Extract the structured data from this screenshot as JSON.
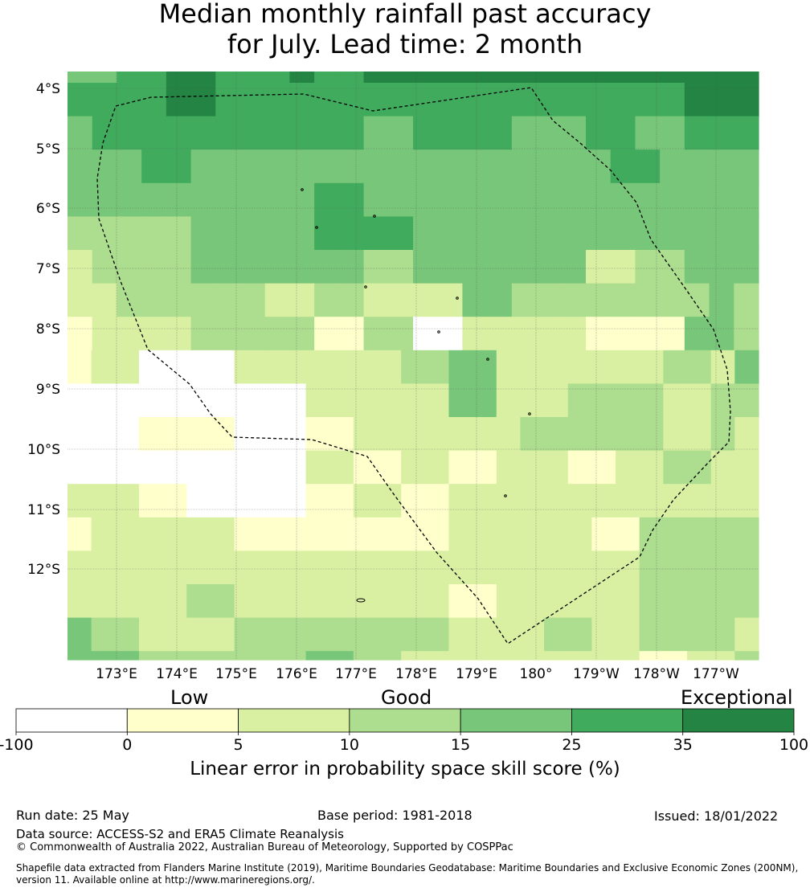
{
  "title_line1": "Median monthly rainfall past accuracy",
  "title_line2": "for July. Lead time: 2 month",
  "map": {
    "lon_labels": [
      "173°E",
      "174°E",
      "175°E",
      "176°E",
      "177°E",
      "178°E",
      "179°E",
      "180°",
      "179°W",
      "178°W",
      "177°W"
    ],
    "lat_labels": [
      "4°S",
      "5°S",
      "6°S",
      "7°S",
      "8°S",
      "9°S",
      "10°S",
      "11°S",
      "12°S"
    ],
    "class_colors": [
      "#ffffff",
      "#ffffcc",
      "#d9f0a3",
      "#addd8e",
      "#78c679",
      "#41ab5d",
      "#238443"
    ],
    "boundary_color": "#000000",
    "grid": [
      [
        4,
        4,
        5,
        5,
        6,
        6,
        5,
        5,
        5,
        6,
        5,
        5,
        6,
        6,
        6,
        6,
        6,
        6,
        6,
        6,
        6,
        6,
        6,
        6,
        6,
        6,
        6,
        6
      ],
      [
        5,
        5,
        5,
        5,
        6,
        6,
        5,
        5,
        5,
        5,
        5,
        5,
        5,
        5,
        5,
        5,
        5,
        5,
        5,
        5,
        5,
        5,
        5,
        5,
        5,
        6,
        6,
        6
      ],
      [
        4,
        5,
        5,
        5,
        5,
        5,
        5,
        5,
        5,
        5,
        5,
        5,
        4,
        4,
        5,
        5,
        5,
        5,
        4,
        4,
        4,
        5,
        5,
        4,
        4,
        5,
        5,
        5
      ],
      [
        4,
        4,
        4,
        5,
        5,
        4,
        4,
        4,
        4,
        4,
        4,
        4,
        4,
        4,
        4,
        4,
        4,
        4,
        4,
        4,
        4,
        4,
        5,
        5,
        4,
        4,
        4,
        4
      ],
      [
        4,
        4,
        4,
        4,
        4,
        4,
        4,
        4,
        4,
        4,
        5,
        5,
        4,
        4,
        4,
        4,
        4,
        4,
        4,
        4,
        4,
        4,
        4,
        4,
        4,
        4,
        4,
        4
      ],
      [
        3,
        3,
        3,
        3,
        3,
        4,
        4,
        4,
        4,
        4,
        5,
        5,
        5,
        5,
        4,
        4,
        4,
        4,
        4,
        4,
        4,
        4,
        4,
        4,
        4,
        4,
        4,
        4
      ],
      [
        2,
        3,
        3,
        3,
        3,
        4,
        4,
        4,
        4,
        4,
        4,
        4,
        3,
        3,
        4,
        4,
        4,
        4,
        4,
        4,
        4,
        2,
        2,
        3,
        3,
        4,
        4,
        4
      ],
      [
        2,
        2,
        3,
        3,
        3,
        3,
        3,
        3,
        2,
        2,
        3,
        3,
        2,
        2,
        2,
        2,
        4,
        4,
        3,
        3,
        3,
        3,
        3,
        3,
        3,
        3,
        4,
        3
      ],
      [
        1,
        2,
        2,
        2,
        2,
        3,
        3,
        3,
        3,
        3,
        1,
        1,
        3,
        3,
        0,
        0,
        2,
        2,
        2,
        2,
        2,
        1,
        1,
        1,
        1,
        4,
        4,
        3
      ],
      [
        1,
        2,
        2,
        0,
        0,
        0,
        0,
        2,
        2,
        2,
        2,
        2,
        2,
        2,
        3,
        3,
        4,
        4,
        2,
        2,
        2,
        2,
        2,
        2,
        2,
        3,
        3,
        2,
        4
      ],
      [
        0,
        0,
        0,
        0,
        0,
        0,
        0,
        0,
        0,
        0,
        2,
        2,
        2,
        2,
        2,
        2,
        4,
        4,
        2,
        2,
        2,
        3,
        3,
        3,
        3,
        2,
        2,
        3,
        3
      ],
      [
        0,
        0,
        0,
        1,
        1,
        1,
        1,
        0,
        0,
        0,
        1,
        1,
        2,
        2,
        2,
        2,
        2,
        2,
        2,
        3,
        3,
        3,
        3,
        3,
        3,
        2,
        2,
        3,
        2
      ],
      [
        0,
        0,
        0,
        0,
        0,
        0,
        0,
        0,
        0,
        0,
        2,
        2,
        1,
        1,
        2,
        2,
        1,
        1,
        2,
        2,
        2,
        1,
        1,
        2,
        2,
        3,
        3,
        2,
        2
      ],
      [
        2,
        2,
        2,
        1,
        1,
        0,
        0,
        0,
        0,
        0,
        1,
        1,
        2,
        2,
        1,
        1,
        2,
        2,
        2,
        2,
        2,
        2,
        2,
        2,
        2,
        2,
        2,
        2,
        2
      ],
      [
        1,
        2,
        2,
        2,
        2,
        2,
        2,
        1,
        1,
        1,
        1,
        1,
        1,
        1,
        1,
        1,
        2,
        2,
        2,
        2,
        2,
        2,
        1,
        1,
        3,
        3,
        3,
        3,
        3
      ],
      [
        2,
        2,
        2,
        2,
        2,
        2,
        2,
        2,
        2,
        2,
        2,
        2,
        2,
        2,
        2,
        2,
        2,
        2,
        2,
        2,
        2,
        2,
        2,
        2,
        3,
        3,
        3,
        3,
        3
      ],
      [
        2,
        2,
        2,
        2,
        2,
        3,
        3,
        2,
        2,
        2,
        2,
        2,
        2,
        2,
        2,
        2,
        1,
        1,
        2,
        2,
        2,
        2,
        2,
        2,
        3,
        3,
        3,
        3,
        3
      ],
      [
        4,
        3,
        3,
        2,
        2,
        2,
        2,
        3,
        3,
        3,
        3,
        3,
        3,
        3,
        3,
        3,
        2,
        2,
        2,
        2,
        3,
        3,
        2,
        2,
        3,
        3,
        3,
        3,
        2
      ],
      [
        4,
        4,
        4,
        3,
        3,
        3,
        3,
        3,
        3,
        3,
        4,
        4,
        3,
        3,
        2,
        2,
        2,
        2,
        2,
        2,
        2,
        2,
        2,
        2,
        1,
        1,
        2,
        2,
        3
      ]
    ]
  },
  "colorbar": {
    "ticks": [
      "-100",
      "0",
      "5",
      "10",
      "15",
      "25",
      "35",
      "100"
    ],
    "categories": [
      "Low",
      "Good",
      "Exceptional"
    ],
    "label": "Linear error in probability space skill score (%)"
  },
  "footer": {
    "run_date": "Run date: 25 May",
    "base_period": "Base period: 1981-2018",
    "issued": "Issued: 18/01/2022",
    "data_source": "Data source: ACCESS-S2 and ERA5 Climate Reanalysis",
    "copyright": "© Commonwealth of Australia 2022, Australian Bureau of Meteorology, Supported by COSPPac",
    "shapefile_line1": "Shapefile data extracted from Flanders Marine Institute (2019), Maritime Boundaries Geodatabase: Maritime Boundaries and Exclusive Economic Zones (200NM),",
    "shapefile_line2": "version 11. Available online at http://www.marineregions.org/."
  }
}
